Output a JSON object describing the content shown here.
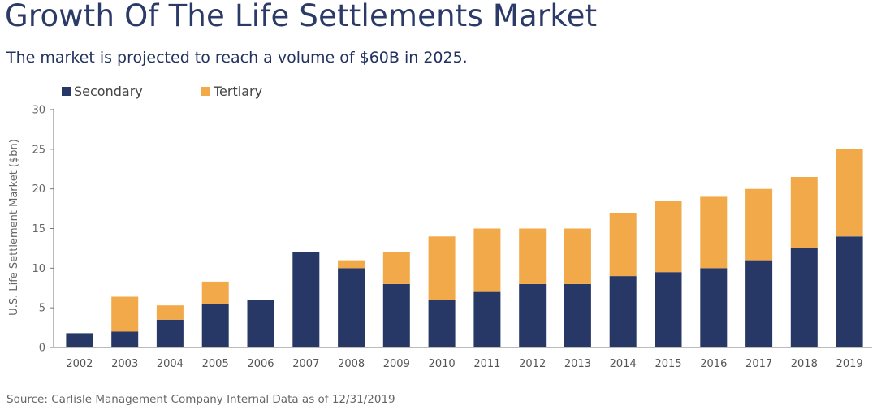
{
  "title": "Growth Of The Life Settlements Market",
  "subtitle": "The market is projected to reach a volume of $60B in 2025.",
  "source": "Source: Carlisle Management Company Internal Data as of 12/31/2019",
  "colors": {
    "secondary": "#273866",
    "tertiary": "#f2a94a",
    "axis": "#666666",
    "title": "#2b3a67"
  },
  "chart_data": {
    "type": "bar",
    "stacked": true,
    "title": "Growth Of The Life Settlements Market",
    "xlabel": "",
    "ylabel": "U.S. Life Settlement Market ($bn)",
    "ylim": [
      0,
      30
    ],
    "yticks": [
      0,
      5,
      10,
      15,
      20,
      25,
      30
    ],
    "grid": false,
    "legend_position": "top-left",
    "categories": [
      "2002",
      "2003",
      "2004",
      "2005",
      "2006",
      "2007",
      "2008",
      "2009",
      "2010",
      "2011",
      "2012",
      "2013",
      "2014",
      "2015",
      "2016",
      "2017",
      "2018",
      "2019"
    ],
    "series": [
      {
        "name": "Secondary",
        "color": "#273866",
        "values": [
          1.8,
          2.0,
          3.5,
          5.5,
          6.0,
          12.0,
          10.0,
          8.0,
          6.0,
          7.0,
          8.0,
          8.0,
          9.0,
          9.5,
          10.0,
          11.0,
          12.5,
          14.0
        ]
      },
      {
        "name": "Tertiary",
        "color": "#f2a94a",
        "values": [
          0.0,
          4.4,
          1.8,
          2.8,
          0.0,
          0.0,
          1.0,
          4.0,
          8.0,
          8.0,
          7.0,
          7.0,
          8.0,
          9.0,
          9.0,
          9.0,
          9.0,
          11.0
        ]
      }
    ]
  }
}
